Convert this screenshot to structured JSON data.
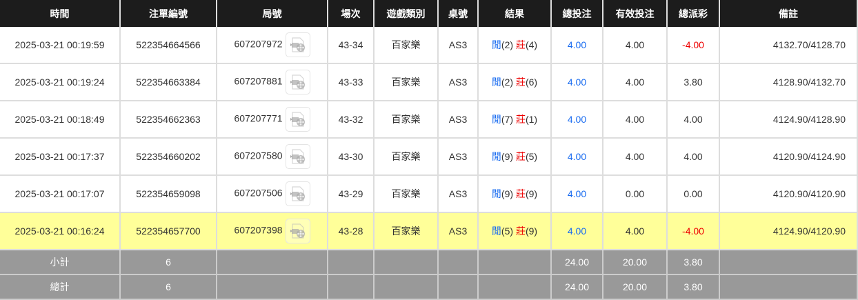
{
  "headers": [
    "時間",
    "注單編號",
    "局號",
    "場次",
    "遊戲類別",
    "桌號",
    "結果",
    "總投注",
    "有效投注",
    "總派彩",
    "備註"
  ],
  "rows": [
    {
      "time": "2025-03-21 00:19:59",
      "order": "522354664566",
      "round": "607207972",
      "session": "43-34",
      "game": "百家樂",
      "table": "AS3",
      "player": "閒",
      "player_pts": "(2)",
      "banker": "莊",
      "banker_pts": "(4)",
      "bet": "4.00",
      "valid": "4.00",
      "payout": "-4.00",
      "payout_neg": true,
      "note": "4132.70/4128.70"
    },
    {
      "time": "2025-03-21 00:19:24",
      "order": "522354663384",
      "round": "607207881",
      "session": "43-33",
      "game": "百家樂",
      "table": "AS3",
      "player": "閒",
      "player_pts": "(2)",
      "banker": "莊",
      "banker_pts": "(6)",
      "bet": "4.00",
      "valid": "4.00",
      "payout": "3.80",
      "payout_neg": false,
      "note": "4128.90/4132.70"
    },
    {
      "time": "2025-03-21 00:18:49",
      "order": "522354662363",
      "round": "607207771",
      "session": "43-32",
      "game": "百家樂",
      "table": "AS3",
      "player": "閒",
      "player_pts": "(7)",
      "banker": "莊",
      "banker_pts": "(1)",
      "bet": "4.00",
      "valid": "4.00",
      "payout": "4.00",
      "payout_neg": false,
      "note": "4124.90/4128.90"
    },
    {
      "time": "2025-03-21 00:17:37",
      "order": "522354660202",
      "round": "607207580",
      "session": "43-30",
      "game": "百家樂",
      "table": "AS3",
      "player": "閒",
      "player_pts": "(9)",
      "banker": "莊",
      "banker_pts": "(5)",
      "bet": "4.00",
      "valid": "4.00",
      "payout": "4.00",
      "payout_neg": false,
      "note": "4120.90/4124.90"
    },
    {
      "time": "2025-03-21 00:17:07",
      "order": "522354659098",
      "round": "607207506",
      "session": "43-29",
      "game": "百家樂",
      "table": "AS3",
      "player": "閒",
      "player_pts": "(9)",
      "banker": "莊",
      "banker_pts": "(9)",
      "bet": "4.00",
      "valid": "0.00",
      "payout": "0.00",
      "payout_neg": false,
      "note": "4120.90/4120.90"
    },
    {
      "time": "2025-03-21 00:16:24",
      "order": "522354657700",
      "round": "607207398",
      "session": "43-28",
      "game": "百家樂",
      "table": "AS3",
      "player": "閒",
      "player_pts": "(5)",
      "banker": "莊",
      "banker_pts": "(9)",
      "bet": "4.00",
      "valid": "4.00",
      "payout": "-4.00",
      "payout_neg": true,
      "note": "4124.90/4120.90",
      "highlight": true
    }
  ],
  "subtotal": {
    "label": "小計",
    "count": "6",
    "bet": "24.00",
    "valid": "20.00",
    "payout": "3.80"
  },
  "total": {
    "label": "總計",
    "count": "6",
    "bet": "24.00",
    "valid": "20.00",
    "payout": "3.80"
  },
  "colors": {
    "player": "#1a6cf0",
    "banker": "#e00000",
    "highlight": "#ffff99"
  }
}
